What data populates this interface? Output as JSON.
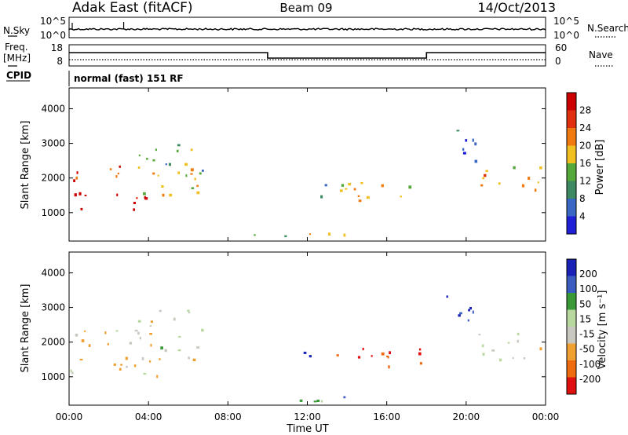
{
  "header": {
    "station": "Adak East (fitACF)",
    "beam": "Beam 09",
    "date": "14/Oct/2013"
  },
  "noise_panel": {
    "left_label": "N.Sky",
    "right_label": "N.Search",
    "left_ticks": [
      "10^5",
      "10^0"
    ],
    "right_ticks": [
      "10^5",
      "10^0"
    ]
  },
  "freq_panel": {
    "left_label_1": "Freq.",
    "left_label_2": "[MHz]",
    "right_label": "Nave",
    "left_ticks": [
      "18",
      "8"
    ],
    "right_ticks": [
      "60",
      "0"
    ],
    "cpid_label": "CPID",
    "mode": "normal (fast) 151 RF"
  },
  "colors": {
    "power": [
      "#1f1fd8",
      "#3a66c4",
      "#3f8a63",
      "#56a83a",
      "#f0c020",
      "#f07a10",
      "#e03010",
      "#cc0000"
    ],
    "velocity": [
      "#e01010",
      "#f06a10",
      "#f0a030",
      "#c8c8c0",
      "#b8d8a0",
      "#3a9a3a",
      "#3a5cc0",
      "#1a22b8"
    ]
  },
  "chart_data": [
    {
      "type": "heatmap",
      "panel": "power",
      "xlabel": "",
      "ylabel": "Slant Range [km]",
      "ylim": [
        180,
        4600
      ],
      "yticks": [
        1000,
        2000,
        3000,
        4000
      ],
      "x_range_hours": [
        0,
        24
      ],
      "colorbar": {
        "label": "Power [dB]",
        "ticks": [
          "4",
          "8",
          "12",
          "16",
          "20",
          "24",
          "28"
        ],
        "range": [
          0,
          32
        ]
      },
      "scatter_regions": [
        {
          "t": [
            0.0,
            4.8
          ],
          "r": [
            1050,
            1600
          ],
          "level": 0.92
        },
        {
          "t": [
            0.0,
            3.6
          ],
          "r": [
            1950,
            2450
          ],
          "level": 0.86
        },
        {
          "t": [
            3.0,
            6.8
          ],
          "r": [
            1500,
            2900
          ],
          "level": 0.55
        },
        {
          "t": [
            4.8,
            6.8
          ],
          "r": [
            2100,
            3000
          ],
          "level": 0.3
        },
        {
          "t": [
            13.0,
            17.8
          ],
          "r": [
            1300,
            1950
          ],
          "level": 0.62
        },
        {
          "t": [
            11.8,
            13.0
          ],
          "r": [
            1500,
            1900
          ],
          "level": 0.35
        },
        {
          "t": [
            18.6,
            20.5
          ],
          "r": [
            2400,
            3400
          ],
          "level": 0.18
        },
        {
          "t": [
            20.5,
            24.0
          ],
          "r": [
            1600,
            2400
          ],
          "level": 0.6
        },
        {
          "t": [
            8.0,
            14.0
          ],
          "r": [
            250,
            450
          ],
          "level": 0.5
        }
      ]
    },
    {
      "type": "heatmap",
      "panel": "velocity",
      "xlabel": "Time UT",
      "ylabel": "Slant Range [km]",
      "ylim": [
        180,
        4600
      ],
      "yticks": [
        1000,
        2000,
        3000,
        4000
      ],
      "x_range_hours": [
        0,
        24
      ],
      "colorbar": {
        "label": "Velocity [m s⁻¹]",
        "ticks": [
          "200",
          "100",
          "50",
          "15",
          "-15",
          "-50",
          "-100",
          "-200"
        ],
        "range": [
          -250,
          250
        ]
      },
      "scatter_regions": [
        {
          "t": [
            0.0,
            4.8
          ],
          "r": [
            1000,
            1650
          ],
          "level": 0.44
        },
        {
          "t": [
            0.0,
            3.6
          ],
          "r": [
            1900,
            2500
          ],
          "level": 0.44
        },
        {
          "t": [
            3.0,
            6.8
          ],
          "r": [
            1500,
            3000
          ],
          "level": 0.46
        },
        {
          "t": [
            13.0,
            17.8
          ],
          "r": [
            1300,
            1950
          ],
          "level": 0.12
        },
        {
          "t": [
            11.8,
            13.0
          ],
          "r": [
            1500,
            1900
          ],
          "level": 0.8
        },
        {
          "t": [
            18.6,
            20.5
          ],
          "r": [
            2400,
            3400
          ],
          "level": 0.92
        },
        {
          "t": [
            20.5,
            24.0
          ],
          "r": [
            1500,
            2300
          ],
          "level": 0.45
        },
        {
          "t": [
            8.0,
            14.0
          ],
          "r": [
            250,
            450
          ],
          "level": 0.62
        }
      ]
    }
  ],
  "x_axis": {
    "label": "Time UT",
    "ticks": [
      "00:00",
      "04:00",
      "08:00",
      "12:00",
      "16:00",
      "20:00",
      "00:00"
    ]
  }
}
